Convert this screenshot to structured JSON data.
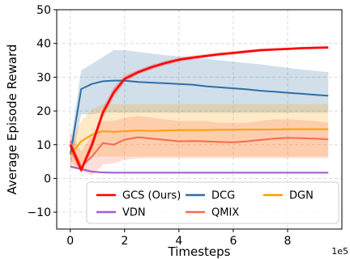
{
  "chart_data": {
    "type": "line",
    "title": "",
    "xlabel": "Timesteps",
    "ylabel": "Average Episode Reward",
    "x_multiplier_label": "1e5",
    "xlim": [
      -0.5,
      10
    ],
    "ylim": [
      -15,
      50
    ],
    "xticks": [
      0,
      2,
      4,
      6,
      8
    ],
    "xtick_labels": [
      "0",
      "2",
      "4",
      "6",
      "8"
    ],
    "yticks": [
      -10,
      0,
      10,
      20,
      30,
      40,
      50
    ],
    "ytick_labels": [
      "−10",
      "0",
      "10",
      "20",
      "30",
      "40",
      "50"
    ],
    "grid": true,
    "legend_position": "lower-right",
    "x": [
      0,
      0.4,
      0.8,
      1.2,
      1.6,
      2.0,
      2.5,
      3.0,
      3.5,
      4.0,
      4.5,
      5.0,
      5.5,
      6.0,
      6.5,
      7.0,
      7.5,
      8.0,
      8.5,
      9.0,
      9.5
    ],
    "series": [
      {
        "name": "GCS (Ours)",
        "color": "#ff0000",
        "values": [
          10,
          2.5,
          10,
          19.5,
          25.5,
          29.5,
          31.5,
          33,
          34.2,
          35.2,
          35.8,
          36.3,
          36.8,
          37.2,
          37.6,
          38,
          38.2,
          38.4,
          38.6,
          38.7,
          38.8
        ],
        "lower": [
          8,
          1.5,
          8.5,
          18,
          24,
          28.5,
          30.8,
          32.3,
          33.5,
          34.6,
          35.2,
          35.8,
          36.2,
          36.7,
          37.1,
          37.5,
          37.8,
          38,
          38.2,
          38.3,
          38.4
        ],
        "upper": [
          12,
          3.5,
          11.5,
          21,
          27,
          30.5,
          32.2,
          33.7,
          34.9,
          35.8,
          36.4,
          36.8,
          37.4,
          37.7,
          38.1,
          38.5,
          38.6,
          38.8,
          39,
          39.1,
          39.2
        ]
      },
      {
        "name": "DCG",
        "color": "#2f6fa6",
        "values": [
          7,
          26.5,
          28,
          28.8,
          29,
          29,
          28.6,
          28.4,
          28.2,
          28,
          27.8,
          27.3,
          27,
          26.7,
          26.4,
          26,
          25.7,
          25.4,
          25.1,
          24.8,
          24.5
        ],
        "lower": [
          3,
          19,
          19,
          19.5,
          19.5,
          19.5,
          19.5,
          19.5,
          19.5,
          19.5,
          19.5,
          19.5,
          19.5,
          19.5,
          19.5,
          19.5,
          19.5,
          19.5,
          19.5,
          19.5,
          19.5
        ],
        "upper": [
          10,
          32,
          34,
          36,
          38,
          38,
          37.5,
          37,
          36.5,
          36.2,
          36,
          35.5,
          35,
          34.6,
          34.2,
          33.8,
          33.3,
          32.8,
          32.3,
          31.9,
          31.5
        ]
      },
      {
        "name": "DGN",
        "color": "#ff9f00",
        "values": [
          7,
          11,
          13,
          14,
          13.8,
          14,
          14.2,
          14.1,
          14.2,
          14.3,
          14.3,
          14.3,
          14.4,
          14.4,
          14.5,
          14.5,
          14.5,
          14.6,
          14.6,
          14.6,
          14.6
        ],
        "lower": [
          3.5,
          3.5,
          6.5,
          6.5,
          6.5,
          6.5,
          6.5,
          6.5,
          6.5,
          6.5,
          6.5,
          6.5,
          6.5,
          6.5,
          6.5,
          6.5,
          6.5,
          6.5,
          6.5,
          6.5,
          6.5
        ],
        "upper": [
          10,
          17,
          20.5,
          22,
          22,
          22,
          22,
          22,
          22,
          22,
          22,
          22,
          22,
          22,
          22,
          22,
          22,
          22,
          22,
          22,
          22
        ]
      },
      {
        "name": "VDN",
        "color": "#a25ecf",
        "values": [
          3.5,
          2.8,
          2.0,
          1.8,
          1.7,
          1.7,
          1.7,
          1.7,
          1.7,
          1.7,
          1.7,
          1.7,
          1.7,
          1.7,
          1.7,
          1.7,
          1.7,
          1.7,
          1.7,
          1.7,
          1.7
        ],
        "lower": [
          3.1,
          2.4,
          1.7,
          1.5,
          1.4,
          1.4,
          1.4,
          1.4,
          1.4,
          1.4,
          1.4,
          1.4,
          1.4,
          1.4,
          1.4,
          1.4,
          1.4,
          1.4,
          1.4,
          1.4,
          1.4
        ],
        "upper": [
          3.9,
          3.2,
          2.3,
          2.1,
          2.0,
          2.0,
          2.0,
          2.0,
          2.0,
          2.0,
          2.0,
          2.0,
          2.0,
          2.0,
          2.0,
          2.0,
          2.0,
          2.0,
          2.0,
          2.0,
          2.0
        ]
      },
      {
        "name": "QMIX",
        "color": "#f86a4e",
        "values": [
          11,
          3.5,
          6.5,
          10.5,
          10,
          11.5,
          12.2,
          11.8,
          11.4,
          11,
          11.1,
          11,
          10.8,
          10.7,
          11,
          11.4,
          11.8,
          12,
          11.9,
          11.8,
          11.6
        ],
        "lower": [
          5,
          2,
          1,
          4,
          4.5,
          5.5,
          6,
          6,
          6,
          6,
          6,
          6,
          6,
          6,
          6,
          6,
          6,
          6,
          6,
          6,
          6
        ],
        "upper": [
          14,
          8,
          13,
          17,
          17,
          18,
          18.5,
          18,
          17.5,
          17,
          17,
          17,
          16.5,
          16.5,
          16.5,
          17,
          17.5,
          17.5,
          17.3,
          17,
          16.5
        ]
      }
    ]
  }
}
